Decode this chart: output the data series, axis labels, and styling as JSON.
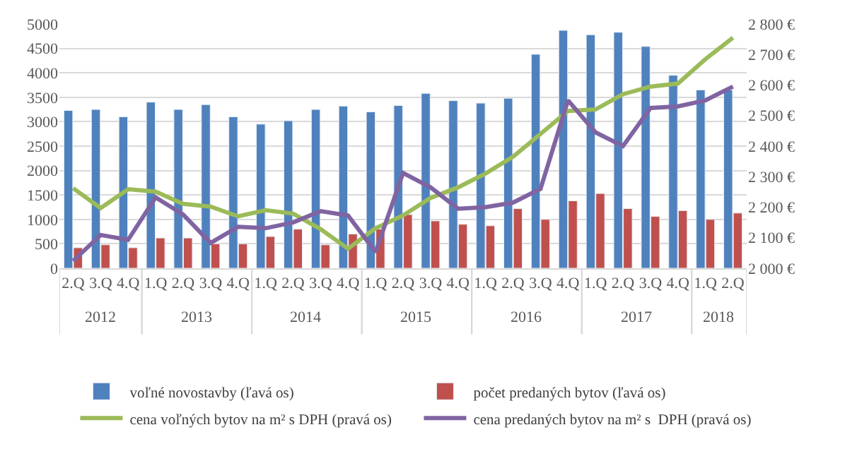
{
  "chart_data": {
    "type": "bar",
    "categories": [
      "2.Q",
      "3.Q",
      "4.Q",
      "1.Q",
      "2.Q",
      "3.Q",
      "4.Q",
      "1.Q",
      "2.Q",
      "3.Q",
      "4.Q",
      "1.Q",
      "2.Q",
      "3.Q",
      "4.Q",
      "1.Q",
      "2.Q",
      "3.Q",
      "4.Q",
      "1.Q",
      "2.Q",
      "3.Q",
      "4.Q",
      "1.Q",
      "2.Q"
    ],
    "annotations": [
      "2012",
      "2013",
      "2014",
      "2015",
      "2016",
      "2017",
      "2018"
    ],
    "series": [
      {
        "name": "voľné novostavby (ľavá os)",
        "color": "#4f81bd",
        "values": [
          3230,
          3250,
          3100,
          3400,
          3250,
          3350,
          3100,
          2950,
          3020,
          3250,
          3320,
          3200,
          3330,
          3580,
          3430,
          3380,
          3480,
          4380,
          4870,
          4780,
          4830,
          4540,
          3950,
          3650,
          3650
        ]
      },
      {
        "name": "počet predaných bytov (ľavá os)",
        "color": "#c0504d",
        "values": [
          420,
          480,
          420,
          620,
          620,
          500,
          500,
          650,
          800,
          480,
          700,
          800,
          1100,
          970,
          900,
          870,
          1220,
          1000,
          1380,
          1530,
          1220,
          1060,
          1180,
          1000,
          1130
        ]
      },
      {
        "name": "cena voľných bytov na m² s DPH (pravá os)",
        "type": "line",
        "axis": "y2",
        "color": "#9bbb59",
        "values": [
          2262,
          2197,
          2259,
          2251,
          2211,
          2202,
          2170,
          2190,
          2179,
          2128,
          2064,
          2131,
          2173,
          2230,
          2265,
          2310,
          2365,
          2440,
          2515,
          2520,
          2570,
          2595,
          2605,
          2685,
          2755
        ]
      },
      {
        "name": "cena predaných bytov na m² s  DPH (pravá os)",
        "type": "line",
        "axis": "y2",
        "color": "#8064a2",
        "values": [
          2024,
          2109,
          2093,
          2232,
          2176,
          2083,
          2136,
          2131,
          2150,
          2187,
          2173,
          2053,
          2312,
          2265,
          2195,
          2200,
          2215,
          2260,
          2550,
          2445,
          2400,
          2525,
          2530,
          2550,
          2595
        ]
      }
    ],
    "ylim": [
      0,
      5000
    ],
    "yticks": [
      0,
      500,
      1000,
      1500,
      2000,
      2500,
      3000,
      3500,
      4000,
      4500,
      5000
    ],
    "y2lim": [
      2000,
      2800
    ],
    "y2ticks": [
      {
        "value": 2000,
        "label": "2 000 €"
      },
      {
        "value": 2100,
        "label": "2 100 €"
      },
      {
        "value": 2200,
        "label": "2 200 €"
      },
      {
        "value": 2300,
        "label": "2 300 €"
      },
      {
        "value": 2400,
        "label": "2 400 €"
      },
      {
        "value": 2500,
        "label": "2 500 €"
      },
      {
        "value": 2600,
        "label": "2 600 €"
      },
      {
        "value": 2700,
        "label": "2 700 €"
      },
      {
        "value": 2800,
        "label": "2 800 €"
      }
    ],
    "grid": "y",
    "legend": "bottom",
    "marker": "none",
    "line_style": "solid"
  }
}
